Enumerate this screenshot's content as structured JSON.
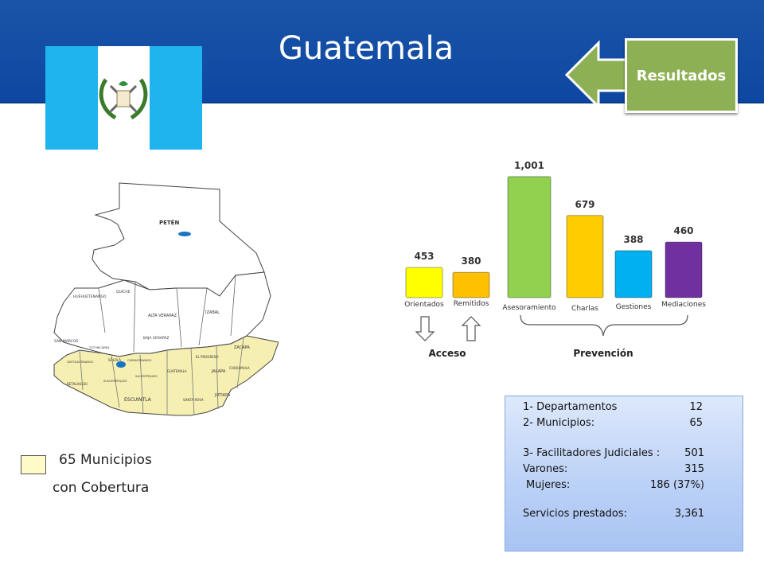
{
  "header": {
    "title": "Guatemala"
  },
  "results_button": {
    "label": "Resultados",
    "color": "#8db054"
  },
  "flag": {
    "colors": {
      "blue": "#1fb4ee",
      "white": "#ffffff"
    }
  },
  "map": {
    "region_labels": [
      "PETÉN",
      "HUEHUETENANGO",
      "QUICHÉ",
      "ALTA VERAPAZ",
      "IZABAL",
      "BAJA VERAPAZ",
      "SAN MARCOS",
      "TOTONICAPÁN",
      "QUETZALTENANGO",
      "SOLOLÁ",
      "CHIMALTENANGO",
      "SACATEPÉQUEZ",
      "GUATEMALA",
      "EL PROGRESO",
      "ZACAPA",
      "CHIQUIMULA",
      "JALAPA",
      "JUTIAPA",
      "SANTA ROSA",
      "ESCUINTLA",
      "SUCHITEPÉQUEZ",
      "RETALHULEU"
    ],
    "covered_color": "#f6efb2"
  },
  "legend": {
    "line1": "65 Municipios",
    "line2": "con Cobertura",
    "swatch_color": "#fffbc8"
  },
  "chart_data": {
    "type": "bar",
    "categories": [
      "Orientados",
      "Remitidos",
      "Asesoramiento",
      "Charlas",
      "Gestiones",
      "Mediaciones"
    ],
    "values": [
      453,
      380,
      1001,
      679,
      388,
      460
    ],
    "value_labels": [
      "453",
      "380",
      "1,001",
      "679",
      "388",
      "460"
    ],
    "colors": [
      "#ffff00",
      "#ffc000",
      "#92d050",
      "#ffcc00",
      "#00b0f0",
      "#7030a0"
    ],
    "groups": [
      {
        "label": "Acceso",
        "categories": [
          "Orientados",
          "Remitidos"
        ]
      },
      {
        "label": "Prevención",
        "categories": [
          "Asesoramiento",
          "Charlas",
          "Gestiones",
          "Mediaciones"
        ]
      }
    ],
    "title": "",
    "xlabel": "",
    "ylabel": "",
    "ylim": [
      0,
      1100
    ],
    "grid": false
  },
  "summary": {
    "departamentos_label": "1- Departamentos",
    "departamentos_value": "12",
    "municipios_label": "2- Municipios:",
    "municipios_value": "65",
    "facilitadores_label": "3- Facilitadores Judiciales :",
    "facilitadores_value": "501",
    "varones_label": "Varones:",
    "varones_value": "315",
    "mujeres_label": "Mujeres:",
    "mujeres_value": "186 (37%)",
    "servicios_label": "Servicios prestados:",
    "servicios_value": "3,361"
  }
}
